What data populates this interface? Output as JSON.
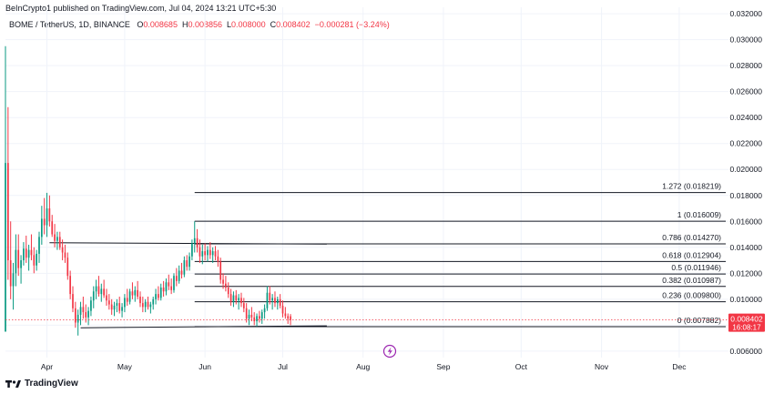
{
  "header": {
    "published": "BeInCrypto1 published on TradingView.com, Jul 04, 2024 13:21 UTC+5:30"
  },
  "symbol": {
    "name": "BOME / TetherUS, 1D, BINANCE",
    "o_label": "O",
    "o": "0.008685",
    "h_label": "H",
    "h": "0.008856",
    "l_label": "L",
    "l": "0.008000",
    "c_label": "C",
    "c": "0.008402",
    "change": "−0.000281 (−3.24%)"
  },
  "price_tag": {
    "value": "0.008402",
    "countdown": "16:08:17"
  },
  "footer": {
    "brand": "TradingView"
  },
  "colors": {
    "up": "#089981",
    "down": "#f23645",
    "line": "#131722",
    "tag": "#f23645",
    "accent_icon": "#9c27b0"
  },
  "icons": [
    "tradingview-logo-icon",
    "lightning-icon"
  ],
  "chart_data": {
    "type": "candlestick",
    "title": "",
    "ylim": [
      0.0055,
      0.0325
    ],
    "yticks": [
      "0.006000",
      "0.008000",
      "0.010000",
      "0.012000",
      "0.014000",
      "0.016000",
      "0.018000",
      "0.020000",
      "0.022000",
      "0.024000",
      "0.026000",
      "0.028000",
      "0.030000",
      "0.032000"
    ],
    "ytick_values": [
      0.006,
      0.008,
      0.01,
      0.012,
      0.014,
      0.016,
      0.018,
      0.02,
      0.022,
      0.024,
      0.026,
      0.028,
      0.03,
      0.032
    ],
    "x_start": "2024-03-16",
    "x_end": "2024-12-20",
    "xticks": [
      {
        "label": "Apr",
        "date": "2024-04-01"
      },
      {
        "label": "May",
        "date": "2024-05-01"
      },
      {
        "label": "Jun",
        "date": "2024-06-01"
      },
      {
        "label": "Jul",
        "date": "2024-07-01"
      },
      {
        "label": "Aug",
        "date": "2024-08-01"
      },
      {
        "label": "Sep",
        "date": "2024-09-01"
      },
      {
        "label": "Oct",
        "date": "2024-10-01"
      },
      {
        "label": "Nov",
        "date": "2024-11-01"
      },
      {
        "label": "Dec",
        "date": "2024-12-01"
      }
    ],
    "candles": [
      [
        "2024-03-16",
        0.0075,
        0.0295,
        0.0075,
        0.0205
      ],
      [
        "2024-03-17",
        0.0205,
        0.0248,
        0.0115,
        0.013
      ],
      [
        "2024-03-18",
        0.013,
        0.016,
        0.01,
        0.011
      ],
      [
        "2024-03-19",
        0.011,
        0.0128,
        0.0092,
        0.012
      ],
      [
        "2024-03-20",
        0.012,
        0.015,
        0.011,
        0.0138
      ],
      [
        "2024-03-21",
        0.0138,
        0.015,
        0.0118,
        0.0124
      ],
      [
        "2024-03-22",
        0.0124,
        0.0134,
        0.0112,
        0.013
      ],
      [
        "2024-03-23",
        0.013,
        0.0144,
        0.0126,
        0.0139
      ],
      [
        "2024-03-24",
        0.0139,
        0.0149,
        0.0128,
        0.0132
      ],
      [
        "2024-03-25",
        0.0132,
        0.0142,
        0.0122,
        0.0138
      ],
      [
        "2024-03-26",
        0.0138,
        0.015,
        0.013,
        0.0134
      ],
      [
        "2024-03-27",
        0.0134,
        0.014,
        0.012,
        0.0126
      ],
      [
        "2024-03-28",
        0.0126,
        0.0138,
        0.0122,
        0.0135
      ],
      [
        "2024-03-29",
        0.0135,
        0.0152,
        0.0128,
        0.0148
      ],
      [
        "2024-03-30",
        0.0148,
        0.0172,
        0.0142,
        0.0162
      ],
      [
        "2024-03-31",
        0.0162,
        0.0178,
        0.015,
        0.0157
      ],
      [
        "2024-04-01",
        0.0157,
        0.0182,
        0.0148,
        0.017
      ],
      [
        "2024-04-02",
        0.017,
        0.018,
        0.0156,
        0.016
      ],
      [
        "2024-04-03",
        0.016,
        0.0165,
        0.0148,
        0.015
      ],
      [
        "2024-04-04",
        0.015,
        0.0158,
        0.014,
        0.0145
      ],
      [
        "2024-04-05",
        0.0145,
        0.0152,
        0.0138,
        0.0148
      ],
      [
        "2024-04-06",
        0.0148,
        0.0152,
        0.0138,
        0.014
      ],
      [
        "2024-04-07",
        0.014,
        0.0146,
        0.013,
        0.0136
      ],
      [
        "2024-04-08",
        0.0136,
        0.0142,
        0.0128,
        0.0132
      ],
      [
        "2024-04-09",
        0.0132,
        0.0136,
        0.0115,
        0.0118
      ],
      [
        "2024-04-10",
        0.0118,
        0.0122,
        0.01,
        0.0104
      ],
      [
        "2024-04-11",
        0.0104,
        0.011,
        0.009,
        0.0093
      ],
      [
        "2024-04-12",
        0.0093,
        0.0098,
        0.0078,
        0.0082
      ],
      [
        "2024-04-13",
        0.0082,
        0.0092,
        0.0072,
        0.0088
      ],
      [
        "2024-04-14",
        0.0088,
        0.0098,
        0.008,
        0.0094
      ],
      [
        "2024-04-15",
        0.0094,
        0.0102,
        0.0085,
        0.009
      ],
      [
        "2024-04-16",
        0.009,
        0.0096,
        0.0082,
        0.0086
      ],
      [
        "2024-04-17",
        0.0086,
        0.0094,
        0.008,
        0.0091
      ],
      [
        "2024-04-18",
        0.0091,
        0.0102,
        0.0087,
        0.0099
      ],
      [
        "2024-04-19",
        0.0099,
        0.011,
        0.0093,
        0.0106
      ],
      [
        "2024-04-20",
        0.0106,
        0.0115,
        0.01,
        0.011
      ],
      [
        "2024-04-21",
        0.011,
        0.0118,
        0.0102,
        0.0104
      ],
      [
        "2024-04-22",
        0.0104,
        0.0112,
        0.0098,
        0.0108
      ],
      [
        "2024-04-23",
        0.0108,
        0.0115,
        0.0101,
        0.0103
      ],
      [
        "2024-04-24",
        0.0103,
        0.0108,
        0.0095,
        0.0099
      ],
      [
        "2024-04-25",
        0.0099,
        0.0104,
        0.0092,
        0.0096
      ],
      [
        "2024-04-26",
        0.0096,
        0.01,
        0.0088,
        0.0092
      ],
      [
        "2024-04-27",
        0.0092,
        0.0098,
        0.0087,
        0.0095
      ],
      [
        "2024-04-28",
        0.0095,
        0.01,
        0.009,
        0.0097
      ],
      [
        "2024-04-29",
        0.0097,
        0.0102,
        0.0089,
        0.0091
      ],
      [
        "2024-04-30",
        0.0091,
        0.0097,
        0.0086,
        0.0094
      ],
      [
        "2024-05-01",
        0.0094,
        0.0104,
        0.009,
        0.0101
      ],
      [
        "2024-05-02",
        0.0101,
        0.0108,
        0.0095,
        0.0098
      ],
      [
        "2024-05-03",
        0.0098,
        0.0108,
        0.0096,
        0.0106
      ],
      [
        "2024-05-04",
        0.0106,
        0.0113,
        0.01,
        0.0103
      ],
      [
        "2024-05-05",
        0.0103,
        0.011,
        0.0098,
        0.0107
      ],
      [
        "2024-05-06",
        0.0107,
        0.0114,
        0.01,
        0.0102
      ],
      [
        "2024-05-07",
        0.0102,
        0.0106,
        0.0094,
        0.0097
      ],
      [
        "2024-05-08",
        0.0097,
        0.0102,
        0.009,
        0.0094
      ],
      [
        "2024-05-09",
        0.0094,
        0.01,
        0.009,
        0.0098
      ],
      [
        "2024-05-10",
        0.0098,
        0.0102,
        0.0092,
        0.0094
      ],
      [
        "2024-05-11",
        0.0094,
        0.0098,
        0.0089,
        0.0096
      ],
      [
        "2024-05-12",
        0.0096,
        0.0102,
        0.0092,
        0.01
      ],
      [
        "2024-05-13",
        0.01,
        0.0108,
        0.0096,
        0.0104
      ],
      [
        "2024-05-14",
        0.0104,
        0.011,
        0.0099,
        0.0101
      ],
      [
        "2024-05-15",
        0.0101,
        0.0112,
        0.0099,
        0.0109
      ],
      [
        "2024-05-16",
        0.0109,
        0.0114,
        0.0102,
        0.0106
      ],
      [
        "2024-05-17",
        0.0106,
        0.0116,
        0.0103,
        0.0113
      ],
      [
        "2024-05-18",
        0.0113,
        0.0119,
        0.0107,
        0.011
      ],
      [
        "2024-05-19",
        0.011,
        0.0116,
        0.0104,
        0.0107
      ],
      [
        "2024-05-20",
        0.0107,
        0.012,
        0.0105,
        0.0118
      ],
      [
        "2024-05-21",
        0.0118,
        0.0124,
        0.011,
        0.0114
      ],
      [
        "2024-05-22",
        0.0114,
        0.0126,
        0.0112,
        0.0122
      ],
      [
        "2024-05-23",
        0.0122,
        0.0128,
        0.0116,
        0.0119
      ],
      [
        "2024-05-24",
        0.0119,
        0.0133,
        0.0117,
        0.013
      ],
      [
        "2024-05-25",
        0.013,
        0.0134,
        0.0122,
        0.0125
      ],
      [
        "2024-05-26",
        0.0125,
        0.0136,
        0.0122,
        0.0133
      ],
      [
        "2024-05-27",
        0.0133,
        0.0146,
        0.013,
        0.0143
      ],
      [
        "2024-05-28",
        0.0143,
        0.016,
        0.0136,
        0.0147
      ],
      [
        "2024-05-29",
        0.0147,
        0.0154,
        0.0136,
        0.014
      ],
      [
        "2024-05-30",
        0.014,
        0.0146,
        0.0128,
        0.0133
      ],
      [
        "2024-05-31",
        0.0133,
        0.0142,
        0.0127,
        0.0137
      ],
      [
        "2024-06-01",
        0.0137,
        0.0143,
        0.013,
        0.0134
      ],
      [
        "2024-06-02",
        0.0134,
        0.0141,
        0.0129,
        0.0138
      ],
      [
        "2024-06-03",
        0.0138,
        0.0144,
        0.0131,
        0.0134
      ],
      [
        "2024-06-04",
        0.0134,
        0.014,
        0.0128,
        0.0137
      ],
      [
        "2024-06-05",
        0.0137,
        0.0141,
        0.013,
        0.0133
      ],
      [
        "2024-06-06",
        0.0133,
        0.0138,
        0.0125,
        0.0129
      ],
      [
        "2024-06-07",
        0.0129,
        0.0132,
        0.0112,
        0.0115
      ],
      [
        "2024-06-08",
        0.0115,
        0.012,
        0.0108,
        0.0112
      ],
      [
        "2024-06-09",
        0.0112,
        0.0118,
        0.0106,
        0.0109
      ],
      [
        "2024-06-10",
        0.0109,
        0.0113,
        0.0101,
        0.0104
      ],
      [
        "2024-06-11",
        0.0104,
        0.0108,
        0.0095,
        0.0098
      ],
      [
        "2024-06-12",
        0.0098,
        0.0106,
        0.0094,
        0.0103
      ],
      [
        "2024-06-13",
        0.0103,
        0.0107,
        0.0096,
        0.0099
      ],
      [
        "2024-06-14",
        0.0099,
        0.0104,
        0.0092,
        0.0101
      ],
      [
        "2024-06-15",
        0.0101,
        0.0105,
        0.0094,
        0.0097
      ],
      [
        "2024-06-16",
        0.0097,
        0.0101,
        0.009,
        0.0093
      ],
      [
        "2024-06-17",
        0.0093,
        0.0097,
        0.0082,
        0.0085
      ],
      [
        "2024-06-18",
        0.0085,
        0.0092,
        0.008,
        0.0088
      ],
      [
        "2024-06-19",
        0.0088,
        0.0094,
        0.0083,
        0.0086
      ],
      [
        "2024-06-20",
        0.0086,
        0.009,
        0.008,
        0.0083
      ],
      [
        "2024-06-21",
        0.0083,
        0.0089,
        0.0079,
        0.0087
      ],
      [
        "2024-06-22",
        0.0087,
        0.0091,
        0.0082,
        0.0085
      ],
      [
        "2024-06-23",
        0.0085,
        0.0092,
        0.0081,
        0.009
      ],
      [
        "2024-06-24",
        0.009,
        0.0096,
        0.0085,
        0.0093
      ],
      [
        "2024-06-25",
        0.0093,
        0.011,
        0.0091,
        0.0105
      ],
      [
        "2024-06-26",
        0.0105,
        0.011,
        0.0096,
        0.0099
      ],
      [
        "2024-06-27",
        0.0099,
        0.0104,
        0.0092,
        0.0101
      ],
      [
        "2024-06-28",
        0.0101,
        0.0106,
        0.0094,
        0.0097
      ],
      [
        "2024-06-29",
        0.0097,
        0.0102,
        0.0092,
        0.01
      ],
      [
        "2024-06-30",
        0.01,
        0.0104,
        0.0093,
        0.0095
      ],
      [
        "2024-07-01",
        0.0095,
        0.0099,
        0.0086,
        0.0089
      ],
      [
        "2024-07-02",
        0.0089,
        0.0094,
        0.0085,
        0.0087
      ],
      [
        "2024-07-03",
        0.0087,
        0.0089,
        0.0081,
        0.0085
      ],
      [
        "2024-07-04",
        0.008685,
        0.008856,
        0.008,
        0.008402
      ]
    ],
    "fib_levels": [
      {
        "label": "1.272 (0.018219)",
        "price": 0.018219,
        "from": "2024-05-28",
        "to": "2024-12-20"
      },
      {
        "label": "1 (0.016009)",
        "price": 0.016009,
        "from": "2024-05-28",
        "to": "2024-12-20"
      },
      {
        "label": "0.786 (0.014270)",
        "price": 0.01427,
        "from": "2024-05-28",
        "to": "2024-12-20"
      },
      {
        "label": "0.618 (0.012904)",
        "price": 0.012904,
        "from": "2024-05-28",
        "to": "2024-12-20"
      },
      {
        "label": "0.5 (0.011946)",
        "price": 0.011946,
        "from": "2024-05-28",
        "to": "2024-12-20"
      },
      {
        "label": "0.382 (0.010987)",
        "price": 0.010987,
        "from": "2024-05-28",
        "to": "2024-12-20"
      },
      {
        "label": "0.236 (0.009800)",
        "price": 0.0098,
        "from": "2024-05-28",
        "to": "2024-12-20"
      },
      {
        "label": "0 (0.007882)",
        "price": 0.007882,
        "from": "2024-05-28",
        "to": "2024-12-20"
      }
    ],
    "trendlines": [
      {
        "from": [
          "2024-04-02",
          0.01435
        ],
        "to": [
          "2024-07-18",
          0.01425
        ]
      },
      {
        "from": [
          "2024-04-14",
          0.0078
        ],
        "to": [
          "2024-07-18",
          0.00795
        ]
      }
    ],
    "last_price": 0.008402
  }
}
